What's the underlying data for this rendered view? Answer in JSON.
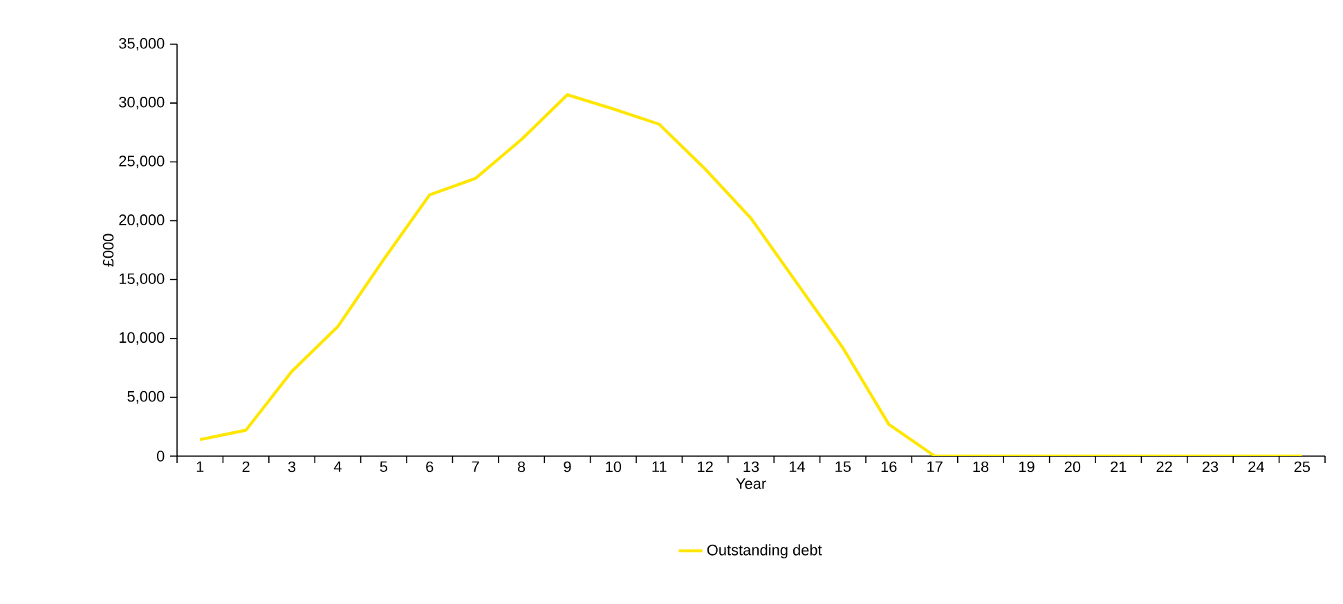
{
  "chart_data": {
    "type": "line",
    "xlabel": "Year",
    "ylabel": "£000",
    "categories": [
      "1",
      "2",
      "3",
      "4",
      "5",
      "6",
      "7",
      "8",
      "9",
      "10",
      "11",
      "12",
      "13",
      "14",
      "15",
      "16",
      "17",
      "18",
      "19",
      "20",
      "21",
      "22",
      "23",
      "24",
      "25"
    ],
    "series": [
      {
        "name": "Outstanding debt",
        "color": "#ffe600",
        "values": [
          1400,
          2200,
          7200,
          11000,
          16700,
          22200,
          23600,
          26900,
          30700,
          29500,
          28200,
          24400,
          20200,
          14700,
          9200,
          2700,
          0,
          0,
          0,
          0,
          0,
          0,
          0,
          0,
          0
        ]
      }
    ],
    "ylim": [
      0,
      35000
    ],
    "yticks": [
      {
        "value": 0,
        "label": "0"
      },
      {
        "value": 5000,
        "label": "5,000"
      },
      {
        "value": 10000,
        "label": "10,000"
      },
      {
        "value": 15000,
        "label": "15,000"
      },
      {
        "value": 20000,
        "label": "20,000"
      },
      {
        "value": 25000,
        "label": "25,000"
      },
      {
        "value": 30000,
        "label": "30,000"
      },
      {
        "value": 35000,
        "label": "35,000"
      }
    ],
    "grid": false,
    "legend": "bottom",
    "marker": "none",
    "line_style": "solid"
  }
}
